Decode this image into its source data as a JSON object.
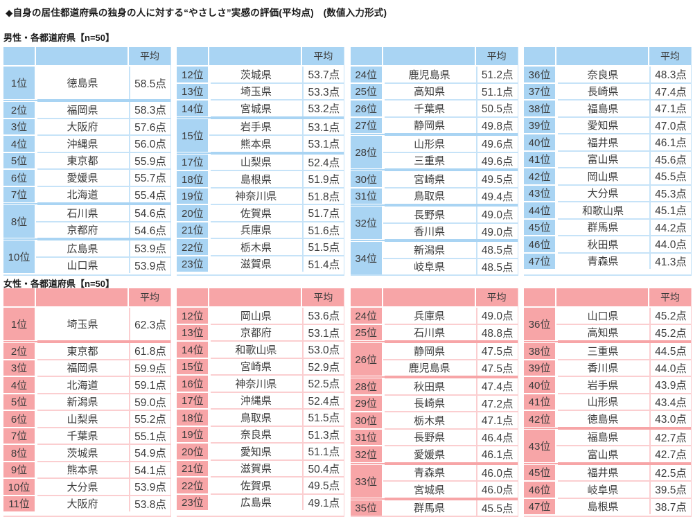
{
  "title": "◆自身の居住都道府県の独身の人に対する“やさしさ”実感の評価(平均点)　(数値入力形式)",
  "avg_label": "平均",
  "colors": {
    "male_accent": "#a9d4f3",
    "male_line": "#c6e3f8",
    "female_accent": "#f7a5a7",
    "female_line": "#fbced0",
    "text": "#3b3b3b"
  },
  "male": {
    "label": "男性・各都道府県【n=50】",
    "tables": [
      {
        "groups": [
          {
            "rank": "1位",
            "tall": true,
            "entries": [
              {
                "pref": "徳島県",
                "score": "58.5点"
              }
            ]
          },
          {
            "rank": "2位",
            "entries": [
              {
                "pref": "福岡県",
                "score": "58.3点"
              }
            ]
          },
          {
            "rank": "3位",
            "entries": [
              {
                "pref": "大阪府",
                "score": "57.6点"
              }
            ]
          },
          {
            "rank": "4位",
            "entries": [
              {
                "pref": "沖縄県",
                "score": "56.0点"
              }
            ]
          },
          {
            "rank": "5位",
            "entries": [
              {
                "pref": "東京都",
                "score": "55.9点"
              }
            ]
          },
          {
            "rank": "6位",
            "entries": [
              {
                "pref": "愛媛県",
                "score": "55.7点"
              }
            ]
          },
          {
            "rank": "7位",
            "entries": [
              {
                "pref": "北海道",
                "score": "55.4点"
              }
            ]
          },
          {
            "rank": "8位",
            "entries": [
              {
                "pref": "石川県",
                "score": "54.6点"
              },
              {
                "pref": "京都府",
                "score": "54.6点"
              }
            ]
          },
          {
            "rank": "10位",
            "entries": [
              {
                "pref": "広島県",
                "score": "53.9点"
              },
              {
                "pref": "山口県",
                "score": "53.9点"
              }
            ]
          }
        ]
      },
      {
        "groups": [
          {
            "rank": "12位",
            "entries": [
              {
                "pref": "茨城県",
                "score": "53.7点"
              }
            ]
          },
          {
            "rank": "13位",
            "entries": [
              {
                "pref": "埼玉県",
                "score": "53.3点"
              }
            ]
          },
          {
            "rank": "14位",
            "entries": [
              {
                "pref": "宮城県",
                "score": "53.2点"
              }
            ]
          },
          {
            "rank": "15位",
            "entries": [
              {
                "pref": "岩手県",
                "score": "53.1点"
              },
              {
                "pref": "熊本県",
                "score": "53.1点"
              }
            ]
          },
          {
            "rank": "17位",
            "entries": [
              {
                "pref": "山梨県",
                "score": "52.4点"
              }
            ]
          },
          {
            "rank": "18位",
            "entries": [
              {
                "pref": "島根県",
                "score": "51.9点"
              }
            ]
          },
          {
            "rank": "19位",
            "entries": [
              {
                "pref": "神奈川県",
                "score": "51.8点"
              }
            ]
          },
          {
            "rank": "20位",
            "entries": [
              {
                "pref": "佐賀県",
                "score": "51.7点"
              }
            ]
          },
          {
            "rank": "21位",
            "entries": [
              {
                "pref": "兵庫県",
                "score": "51.6点"
              }
            ]
          },
          {
            "rank": "22位",
            "entries": [
              {
                "pref": "栃木県",
                "score": "51.5点"
              }
            ]
          },
          {
            "rank": "23位",
            "entries": [
              {
                "pref": "滋賀県",
                "score": "51.4点"
              }
            ]
          }
        ]
      },
      {
        "groups": [
          {
            "rank": "24位",
            "entries": [
              {
                "pref": "鹿児島県",
                "score": "51.2点"
              }
            ]
          },
          {
            "rank": "25位",
            "entries": [
              {
                "pref": "高知県",
                "score": "51.1点"
              }
            ]
          },
          {
            "rank": "26位",
            "entries": [
              {
                "pref": "千葉県",
                "score": "50.5点"
              }
            ]
          },
          {
            "rank": "27位",
            "entries": [
              {
                "pref": "静岡県",
                "score": "49.8点"
              }
            ]
          },
          {
            "rank": "28位",
            "entries": [
              {
                "pref": "山形県",
                "score": "49.6点"
              },
              {
                "pref": "三重県",
                "score": "49.6点"
              }
            ]
          },
          {
            "rank": "30位",
            "entries": [
              {
                "pref": "宮崎県",
                "score": "49.5点"
              }
            ]
          },
          {
            "rank": "31位",
            "entries": [
              {
                "pref": "鳥取県",
                "score": "49.4点"
              }
            ]
          },
          {
            "rank": "32位",
            "entries": [
              {
                "pref": "長野県",
                "score": "49.0点"
              },
              {
                "pref": "香川県",
                "score": "49.0点"
              }
            ]
          },
          {
            "rank": "34位",
            "entries": [
              {
                "pref": "新潟県",
                "score": "48.5点"
              },
              {
                "pref": "岐阜県",
                "score": "48.5点"
              }
            ]
          }
        ]
      },
      {
        "groups": [
          {
            "rank": "36位",
            "entries": [
              {
                "pref": "奈良県",
                "score": "48.3点"
              }
            ]
          },
          {
            "rank": "37位",
            "entries": [
              {
                "pref": "長崎県",
                "score": "47.4点"
              }
            ]
          },
          {
            "rank": "38位",
            "entries": [
              {
                "pref": "福島県",
                "score": "47.1点"
              }
            ]
          },
          {
            "rank": "39位",
            "entries": [
              {
                "pref": "愛知県",
                "score": "47.0点"
              }
            ]
          },
          {
            "rank": "40位",
            "entries": [
              {
                "pref": "福井県",
                "score": "46.1点"
              }
            ]
          },
          {
            "rank": "41位",
            "entries": [
              {
                "pref": "富山県",
                "score": "45.6点"
              }
            ]
          },
          {
            "rank": "42位",
            "entries": [
              {
                "pref": "岡山県",
                "score": "45.5点"
              }
            ]
          },
          {
            "rank": "43位",
            "entries": [
              {
                "pref": "大分県",
                "score": "45.3点"
              }
            ]
          },
          {
            "rank": "44位",
            "entries": [
              {
                "pref": "和歌山県",
                "score": "45.1点"
              }
            ]
          },
          {
            "rank": "45位",
            "entries": [
              {
                "pref": "群馬県",
                "score": "44.2点"
              }
            ]
          },
          {
            "rank": "46位",
            "entries": [
              {
                "pref": "秋田県",
                "score": "44.0点"
              }
            ]
          },
          {
            "rank": "47位",
            "entries": [
              {
                "pref": "青森県",
                "score": "41.3点"
              }
            ]
          }
        ]
      }
    ]
  },
  "female": {
    "label": "女性・各都道府県【n=50】",
    "tables": [
      {
        "groups": [
          {
            "rank": "1位",
            "tall": true,
            "entries": [
              {
                "pref": "埼玉県",
                "score": "62.3点"
              }
            ]
          },
          {
            "rank": "2位",
            "entries": [
              {
                "pref": "東京都",
                "score": "61.8点"
              }
            ]
          },
          {
            "rank": "3位",
            "entries": [
              {
                "pref": "福岡県",
                "score": "59.9点"
              }
            ]
          },
          {
            "rank": "4位",
            "entries": [
              {
                "pref": "北海道",
                "score": "59.1点"
              }
            ]
          },
          {
            "rank": "5位",
            "entries": [
              {
                "pref": "新潟県",
                "score": "59.0点"
              }
            ]
          },
          {
            "rank": "6位",
            "entries": [
              {
                "pref": "山梨県",
                "score": "55.2点"
              }
            ]
          },
          {
            "rank": "7位",
            "entries": [
              {
                "pref": "千葉県",
                "score": "55.1点"
              }
            ]
          },
          {
            "rank": "8位",
            "entries": [
              {
                "pref": "茨城県",
                "score": "54.9点"
              }
            ]
          },
          {
            "rank": "9位",
            "entries": [
              {
                "pref": "熊本県",
                "score": "54.1点"
              }
            ]
          },
          {
            "rank": "10位",
            "entries": [
              {
                "pref": "大分県",
                "score": "53.9点"
              }
            ]
          },
          {
            "rank": "11位",
            "entries": [
              {
                "pref": "大阪府",
                "score": "53.8点"
              }
            ]
          }
        ]
      },
      {
        "groups": [
          {
            "rank": "12位",
            "entries": [
              {
                "pref": "岡山県",
                "score": "53.6点"
              }
            ]
          },
          {
            "rank": "13位",
            "entries": [
              {
                "pref": "京都府",
                "score": "53.1点"
              }
            ]
          },
          {
            "rank": "14位",
            "entries": [
              {
                "pref": "和歌山県",
                "score": "53.0点"
              }
            ]
          },
          {
            "rank": "15位",
            "entries": [
              {
                "pref": "宮崎県",
                "score": "52.9点"
              }
            ]
          },
          {
            "rank": "16位",
            "entries": [
              {
                "pref": "神奈川県",
                "score": "52.5点"
              }
            ]
          },
          {
            "rank": "17位",
            "entries": [
              {
                "pref": "沖縄県",
                "score": "52.4点"
              }
            ]
          },
          {
            "rank": "18位",
            "entries": [
              {
                "pref": "鳥取県",
                "score": "51.5点"
              }
            ]
          },
          {
            "rank": "19位",
            "entries": [
              {
                "pref": "奈良県",
                "score": "51.3点"
              }
            ]
          },
          {
            "rank": "20位",
            "entries": [
              {
                "pref": "愛知県",
                "score": "51.1点"
              }
            ]
          },
          {
            "rank": "21位",
            "entries": [
              {
                "pref": "滋賀県",
                "score": "50.4点"
              }
            ]
          },
          {
            "rank": "22位",
            "entries": [
              {
                "pref": "佐賀県",
                "score": "49.5点"
              }
            ]
          },
          {
            "rank": "23位",
            "entries": [
              {
                "pref": "広島県",
                "score": "49.1点"
              }
            ]
          }
        ]
      },
      {
        "groups": [
          {
            "rank": "24位",
            "entries": [
              {
                "pref": "兵庫県",
                "score": "49.0点"
              }
            ]
          },
          {
            "rank": "25位",
            "entries": [
              {
                "pref": "石川県",
                "score": "48.8点"
              }
            ]
          },
          {
            "rank": "26位",
            "entries": [
              {
                "pref": "静岡県",
                "score": "47.5点"
              },
              {
                "pref": "鹿児島県",
                "score": "47.5点"
              }
            ]
          },
          {
            "rank": "28位",
            "entries": [
              {
                "pref": "秋田県",
                "score": "47.4点"
              }
            ]
          },
          {
            "rank": "29位",
            "entries": [
              {
                "pref": "長崎県",
                "score": "47.2点"
              }
            ]
          },
          {
            "rank": "30位",
            "entries": [
              {
                "pref": "栃木県",
                "score": "47.1点"
              }
            ]
          },
          {
            "rank": "31位",
            "entries": [
              {
                "pref": "長野県",
                "score": "46.4点"
              }
            ]
          },
          {
            "rank": "32位",
            "entries": [
              {
                "pref": "愛媛県",
                "score": "46.1点"
              }
            ]
          },
          {
            "rank": "33位",
            "entries": [
              {
                "pref": "青森県",
                "score": "46.0点"
              },
              {
                "pref": "宮城県",
                "score": "46.0点"
              }
            ]
          },
          {
            "rank": "35位",
            "entries": [
              {
                "pref": "群馬県",
                "score": "45.5点"
              }
            ]
          }
        ]
      },
      {
        "groups": [
          {
            "rank": "36位",
            "entries": [
              {
                "pref": "山口県",
                "score": "45.2点"
              },
              {
                "pref": "高知県",
                "score": "45.2点"
              }
            ]
          },
          {
            "rank": "38位",
            "entries": [
              {
                "pref": "三重県",
                "score": "44.5点"
              }
            ]
          },
          {
            "rank": "39位",
            "entries": [
              {
                "pref": "香川県",
                "score": "44.0点"
              }
            ]
          },
          {
            "rank": "40位",
            "entries": [
              {
                "pref": "岩手県",
                "score": "43.9点"
              }
            ]
          },
          {
            "rank": "41位",
            "entries": [
              {
                "pref": "山形県",
                "score": "43.4点"
              }
            ]
          },
          {
            "rank": "42位",
            "entries": [
              {
                "pref": "徳島県",
                "score": "43.0点"
              }
            ]
          },
          {
            "rank": "43位",
            "entries": [
              {
                "pref": "福島県",
                "score": "42.7点"
              },
              {
                "pref": "富山県",
                "score": "42.7点"
              }
            ]
          },
          {
            "rank": "45位",
            "entries": [
              {
                "pref": "福井県",
                "score": "42.5点"
              }
            ]
          },
          {
            "rank": "46位",
            "entries": [
              {
                "pref": "岐阜県",
                "score": "39.5点"
              }
            ]
          },
          {
            "rank": "47位",
            "entries": [
              {
                "pref": "島根県",
                "score": "38.7点"
              }
            ]
          }
        ]
      }
    ]
  }
}
